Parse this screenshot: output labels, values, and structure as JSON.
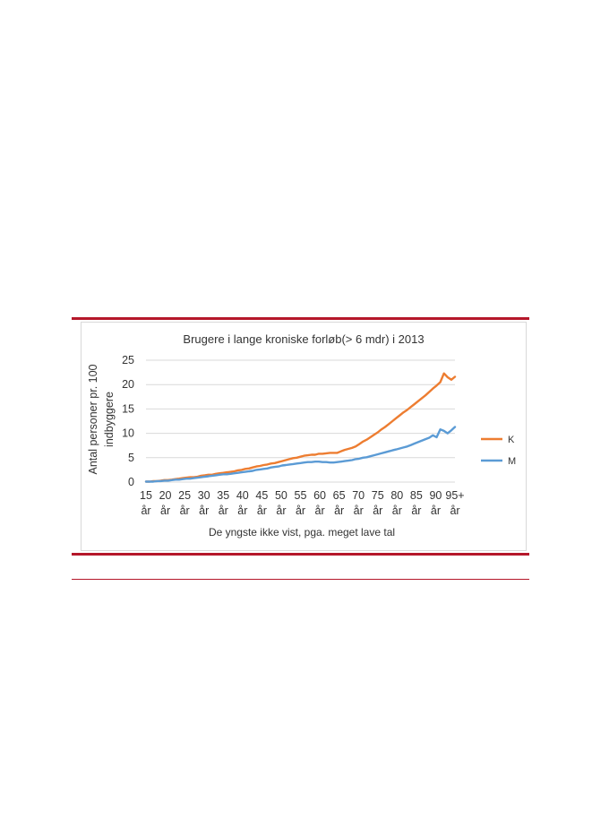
{
  "chart_data": {
    "type": "line",
    "title": "Brugere i lange kroniske forløb(> 6 mdr) i 2013",
    "xlabel": "De yngste ikke vist, pga. meget lave tal",
    "ylabel_line1": "Antal personer pr. 100",
    "ylabel_line2": "indbyggere",
    "ylim": [
      0,
      25
    ],
    "yticks": [
      "0",
      "5",
      "10",
      "15",
      "20",
      "25"
    ],
    "x_tick_labels": [
      {
        "age": 15,
        "top": "15",
        "bottom": "år"
      },
      {
        "age": 20,
        "top": "20",
        "bottom": "år"
      },
      {
        "age": 25,
        "top": "25",
        "bottom": "år"
      },
      {
        "age": 30,
        "top": "30",
        "bottom": "år"
      },
      {
        "age": 35,
        "top": "35",
        "bottom": "år"
      },
      {
        "age": 40,
        "top": "40",
        "bottom": "år"
      },
      {
        "age": 45,
        "top": "45",
        "bottom": "år"
      },
      {
        "age": 50,
        "top": "50",
        "bottom": "år"
      },
      {
        "age": 55,
        "top": "55",
        "bottom": "år"
      },
      {
        "age": 60,
        "top": "60",
        "bottom": "år"
      },
      {
        "age": 65,
        "top": "65",
        "bottom": "år"
      },
      {
        "age": 70,
        "top": "70",
        "bottom": "år"
      },
      {
        "age": 75,
        "top": "75",
        "bottom": "år"
      },
      {
        "age": 80,
        "top": "80",
        "bottom": "år"
      },
      {
        "age": 85,
        "top": "85",
        "bottom": "år"
      },
      {
        "age": 90,
        "top": "90",
        "bottom": "år"
      },
      {
        "age": 95,
        "top": "95+",
        "bottom": "år"
      }
    ],
    "grid": true,
    "legend_position": "right",
    "x_start": 15,
    "x_end": 95,
    "series": [
      {
        "name": "K",
        "color": "#ed7d31",
        "values": [
          0.1,
          0.1,
          0.2,
          0.2,
          0.3,
          0.4,
          0.4,
          0.5,
          0.6,
          0.7,
          0.8,
          0.9,
          1.0,
          1.0,
          1.1,
          1.3,
          1.4,
          1.5,
          1.5,
          1.7,
          1.8,
          1.9,
          2.0,
          2.1,
          2.2,
          2.4,
          2.5,
          2.7,
          2.8,
          3.0,
          3.2,
          3.3,
          3.5,
          3.6,
          3.8,
          3.9,
          4.1,
          4.3,
          4.5,
          4.7,
          4.9,
          5.0,
          5.2,
          5.4,
          5.5,
          5.6,
          5.6,
          5.8,
          5.8,
          5.9,
          6.0,
          6.0,
          6.0,
          6.3,
          6.6,
          6.8,
          7.0,
          7.3,
          7.8,
          8.3,
          8.7,
          9.2,
          9.7,
          10.2,
          10.8,
          11.3,
          11.9,
          12.5,
          13.1,
          13.7,
          14.3,
          14.8,
          15.4,
          16.0,
          16.6,
          17.2,
          17.8,
          18.5,
          19.2,
          19.8,
          20.5,
          22.3,
          21.5,
          21.0,
          21.6
        ]
      },
      {
        "name": "M",
        "color": "#5b9bd5",
        "values": [
          0.1,
          0.1,
          0.1,
          0.2,
          0.2,
          0.3,
          0.3,
          0.4,
          0.5,
          0.5,
          0.6,
          0.7,
          0.7,
          0.8,
          0.9,
          1.0,
          1.1,
          1.2,
          1.3,
          1.4,
          1.5,
          1.6,
          1.6,
          1.7,
          1.8,
          1.9,
          2.0,
          2.1,
          2.2,
          2.3,
          2.5,
          2.6,
          2.7,
          2.8,
          3.0,
          3.1,
          3.2,
          3.4,
          3.5,
          3.6,
          3.7,
          3.8,
          3.9,
          4.0,
          4.1,
          4.1,
          4.2,
          4.2,
          4.1,
          4.1,
          4.0,
          4.0,
          4.1,
          4.2,
          4.3,
          4.4,
          4.5,
          4.7,
          4.8,
          5.0,
          5.1,
          5.3,
          5.5,
          5.7,
          5.9,
          6.1,
          6.3,
          6.5,
          6.7,
          6.9,
          7.1,
          7.3,
          7.6,
          7.9,
          8.2,
          8.5,
          8.8,
          9.1,
          9.6,
          9.2,
          10.8,
          10.5,
          10.0,
          10.6,
          11.3
        ]
      }
    ]
  }
}
